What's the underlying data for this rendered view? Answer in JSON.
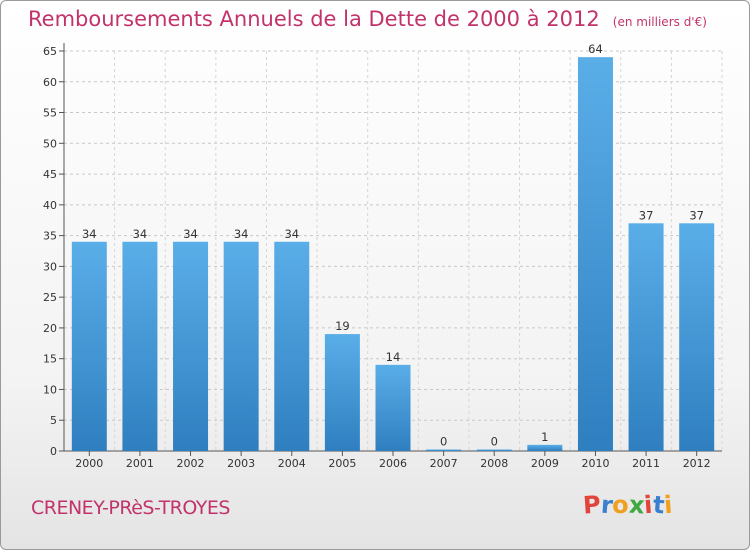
{
  "title": "Remboursements Annuels de la Dette de 2000 à 2012",
  "subtitle": "(en milliers d'€)",
  "commune": "CRENEY-PRèS-TROYES",
  "brand": {
    "letters": [
      "P",
      "r",
      "o",
      "x",
      "i",
      "t",
      "i"
    ]
  },
  "colors": {
    "title": "#c2336b",
    "bar_top": "#5aaee8",
    "bar_bottom": "#2f7fc0",
    "brand_letters": [
      "#e0443b",
      "#3a7fd0",
      "#f0a020",
      "#3fa83f",
      "#e0443b",
      "#3a7fd0",
      "#f0a020"
    ]
  },
  "chart_data": {
    "type": "bar",
    "categories": [
      "2000",
      "2001",
      "2002",
      "2003",
      "2004",
      "2005",
      "2006",
      "2007",
      "2008",
      "2009",
      "2010",
      "2011",
      "2012"
    ],
    "values": [
      34,
      34,
      34,
      34,
      34,
      19,
      14,
      0,
      0,
      1,
      64,
      37,
      37
    ],
    "ylim": [
      0,
      65
    ],
    "yticks": [
      0,
      5,
      10,
      15,
      20,
      25,
      30,
      35,
      40,
      45,
      50,
      55,
      60,
      65
    ],
    "grid": true,
    "legend": "none"
  }
}
